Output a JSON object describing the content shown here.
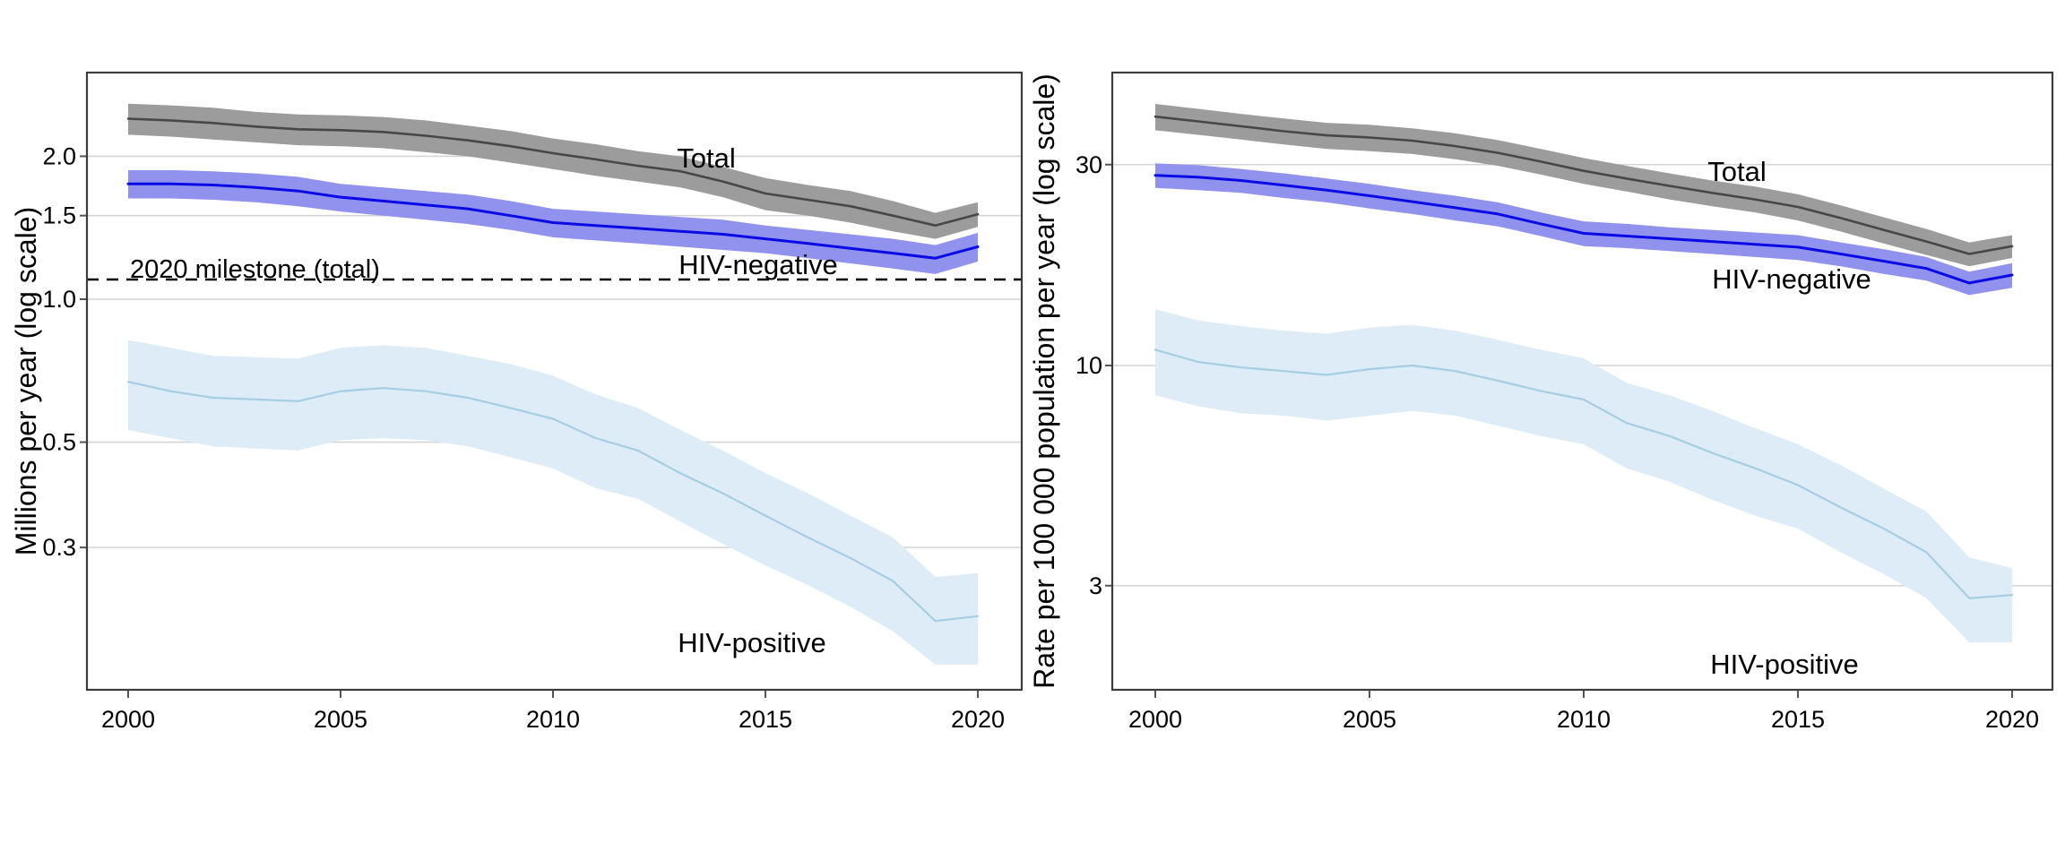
{
  "figure": {
    "background": "#ffffff",
    "grid_color": "#d4d4d4",
    "border_color": "#3c3c3c",
    "tick_color": "#555555"
  },
  "chart_data": [
    {
      "id": "tb-deaths",
      "type": "line",
      "title": "",
      "ylabel": "Millions per year (log scale)",
      "xlabel": "",
      "scale": "log",
      "grid": "horizontal",
      "legend_position": "none (direct labels on chart)",
      "x_ticks": [
        2000,
        2005,
        2010,
        2015,
        2020
      ],
      "y_ticks": [
        {
          "v": 2.0,
          "label": "2.0"
        },
        {
          "v": 1.5,
          "label": "1.5"
        },
        {
          "v": 1.0,
          "label": "1.0"
        },
        {
          "v": 0.5,
          "label": "0.5"
        },
        {
          "v": 0.3,
          "label": "0.3"
        }
      ],
      "years": [
        2000,
        2001,
        2002,
        2003,
        2004,
        2005,
        2006,
        2007,
        2008,
        2009,
        2010,
        2011,
        2012,
        2013,
        2014,
        2015,
        2016,
        2017,
        2018,
        2019,
        2020
      ],
      "milestone": {
        "label": "2020 milestone (total)",
        "value": 1.1,
        "line_style": "dashed",
        "color": "#000000"
      },
      "series": [
        {
          "name": "total",
          "label": "Total",
          "color": "#474747",
          "band_color": "#9c9c9c",
          "values": [
            2.4,
            2.38,
            2.35,
            2.31,
            2.28,
            2.27,
            2.25,
            2.21,
            2.16,
            2.1,
            2.03,
            1.97,
            1.91,
            1.86,
            1.77,
            1.67,
            1.62,
            1.57,
            1.5,
            1.43,
            1.51
          ],
          "upper": [
            2.58,
            2.56,
            2.53,
            2.48,
            2.45,
            2.44,
            2.42,
            2.38,
            2.32,
            2.26,
            2.18,
            2.12,
            2.05,
            2.0,
            1.9,
            1.8,
            1.74,
            1.69,
            1.61,
            1.52,
            1.6
          ],
          "lower": [
            2.22,
            2.2,
            2.17,
            2.14,
            2.11,
            2.1,
            2.08,
            2.04,
            2.0,
            1.94,
            1.88,
            1.82,
            1.77,
            1.72,
            1.64,
            1.54,
            1.5,
            1.45,
            1.39,
            1.34,
            1.42
          ]
        },
        {
          "name": "hiv-negative",
          "label": "HIV-negative",
          "color": "#0a0ae6",
          "band_color": "#9191ee",
          "values": [
            1.75,
            1.75,
            1.74,
            1.72,
            1.69,
            1.64,
            1.61,
            1.58,
            1.55,
            1.5,
            1.45,
            1.43,
            1.41,
            1.39,
            1.37,
            1.34,
            1.31,
            1.28,
            1.25,
            1.22,
            1.29
          ],
          "upper": [
            1.87,
            1.87,
            1.86,
            1.84,
            1.81,
            1.75,
            1.72,
            1.69,
            1.66,
            1.61,
            1.55,
            1.53,
            1.51,
            1.49,
            1.47,
            1.43,
            1.4,
            1.37,
            1.34,
            1.3,
            1.38
          ],
          "lower": [
            1.63,
            1.63,
            1.62,
            1.6,
            1.57,
            1.53,
            1.5,
            1.47,
            1.44,
            1.4,
            1.35,
            1.33,
            1.31,
            1.29,
            1.27,
            1.25,
            1.22,
            1.19,
            1.16,
            1.13,
            1.2
          ]
        },
        {
          "name": "hiv-positive",
          "label": "HIV-positive",
          "color": "#a6cee3",
          "band_color": "#ddecf7",
          "values": [
            0.67,
            0.64,
            0.62,
            0.615,
            0.61,
            0.64,
            0.65,
            0.64,
            0.62,
            0.59,
            0.56,
            0.51,
            0.48,
            0.43,
            0.39,
            0.35,
            0.315,
            0.285,
            0.255,
            0.21,
            0.215
          ],
          "upper": [
            0.82,
            0.79,
            0.76,
            0.755,
            0.75,
            0.79,
            0.8,
            0.79,
            0.76,
            0.73,
            0.69,
            0.63,
            0.59,
            0.53,
            0.48,
            0.43,
            0.39,
            0.35,
            0.315,
            0.26,
            0.265
          ],
          "lower": [
            0.53,
            0.51,
            0.49,
            0.485,
            0.48,
            0.505,
            0.51,
            0.505,
            0.49,
            0.465,
            0.44,
            0.4,
            0.38,
            0.34,
            0.305,
            0.275,
            0.25,
            0.225,
            0.2,
            0.17,
            0.17
          ]
        }
      ]
    },
    {
      "id": "tb-mortality-rate",
      "type": "line",
      "title": "",
      "ylabel": "Rate per 100 000 population per year (log scale)",
      "xlabel": "",
      "scale": "log",
      "grid": "horizontal",
      "legend_position": "none (direct labels on chart)",
      "x_ticks": [
        2000,
        2005,
        2010,
        2015,
        2020
      ],
      "y_ticks": [
        {
          "v": 30,
          "label": "30"
        },
        {
          "v": 10,
          "label": "10"
        },
        {
          "v": 3,
          "label": "3"
        }
      ],
      "years": [
        2000,
        2001,
        2002,
        2003,
        2004,
        2005,
        2006,
        2007,
        2008,
        2009,
        2010,
        2011,
        2012,
        2013,
        2014,
        2015,
        2016,
        2017,
        2018,
        2019,
        2020
      ],
      "series": [
        {
          "name": "total",
          "label": "Total",
          "color": "#474747",
          "band_color": "#9c9c9c",
          "values": [
            39.0,
            38.0,
            37.0,
            36.0,
            35.2,
            34.8,
            34.2,
            33.2,
            32.0,
            30.5,
            29.0,
            27.8,
            26.7,
            25.7,
            24.8,
            23.8,
            22.4,
            21.0,
            19.7,
            18.4,
            19.2
          ],
          "upper": [
            41.8,
            40.7,
            39.6,
            38.6,
            37.7,
            37.3,
            36.6,
            35.6,
            34.3,
            32.7,
            31.1,
            29.8,
            28.6,
            27.5,
            26.6,
            25.5,
            24.0,
            22.5,
            21.1,
            19.6,
            20.4
          ],
          "lower": [
            36.2,
            35.3,
            34.4,
            33.5,
            32.7,
            32.3,
            31.8,
            30.9,
            29.8,
            28.4,
            27.0,
            25.9,
            24.8,
            23.9,
            23.1,
            22.1,
            20.8,
            19.5,
            18.3,
            17.2,
            18.0
          ]
        },
        {
          "name": "hiv-negative",
          "label": "HIV-negative",
          "color": "#0a0ae6",
          "band_color": "#9191ee",
          "values": [
            28.3,
            28.0,
            27.5,
            26.8,
            26.1,
            25.3,
            24.5,
            23.7,
            22.9,
            21.7,
            20.6,
            20.3,
            20.0,
            19.7,
            19.4,
            19.1,
            18.4,
            17.7,
            17.0,
            15.7,
            16.4
          ],
          "upper": [
            30.2,
            29.9,
            29.3,
            28.6,
            27.8,
            27.0,
            26.1,
            25.3,
            24.4,
            23.1,
            22.0,
            21.7,
            21.3,
            21.0,
            20.7,
            20.4,
            19.6,
            18.9,
            18.1,
            16.7,
            17.5
          ],
          "lower": [
            26.4,
            26.1,
            25.7,
            25.0,
            24.4,
            23.6,
            22.9,
            22.1,
            21.4,
            20.3,
            19.2,
            19.0,
            18.7,
            18.4,
            18.1,
            17.8,
            17.2,
            16.5,
            15.9,
            14.7,
            15.3
          ]
        },
        {
          "name": "hiv-positive",
          "label": "HIV-positive",
          "color": "#a6cee3",
          "band_color": "#ddecf7",
          "values": [
            10.9,
            10.2,
            9.9,
            9.7,
            9.5,
            9.8,
            10.0,
            9.7,
            9.2,
            8.7,
            8.3,
            7.3,
            6.8,
            6.2,
            5.7,
            5.2,
            4.6,
            4.1,
            3.6,
            2.8,
            2.85
          ],
          "upper": [
            13.6,
            12.8,
            12.4,
            12.1,
            11.9,
            12.3,
            12.5,
            12.1,
            11.5,
            10.9,
            10.4,
            9.1,
            8.5,
            7.8,
            7.1,
            6.5,
            5.8,
            5.1,
            4.5,
            3.5,
            3.3
          ],
          "lower": [
            8.5,
            8.0,
            7.7,
            7.6,
            7.4,
            7.6,
            7.8,
            7.6,
            7.2,
            6.8,
            6.5,
            5.7,
            5.3,
            4.8,
            4.4,
            4.1,
            3.6,
            3.2,
            2.8,
            2.2,
            2.2
          ]
        }
      ]
    }
  ]
}
